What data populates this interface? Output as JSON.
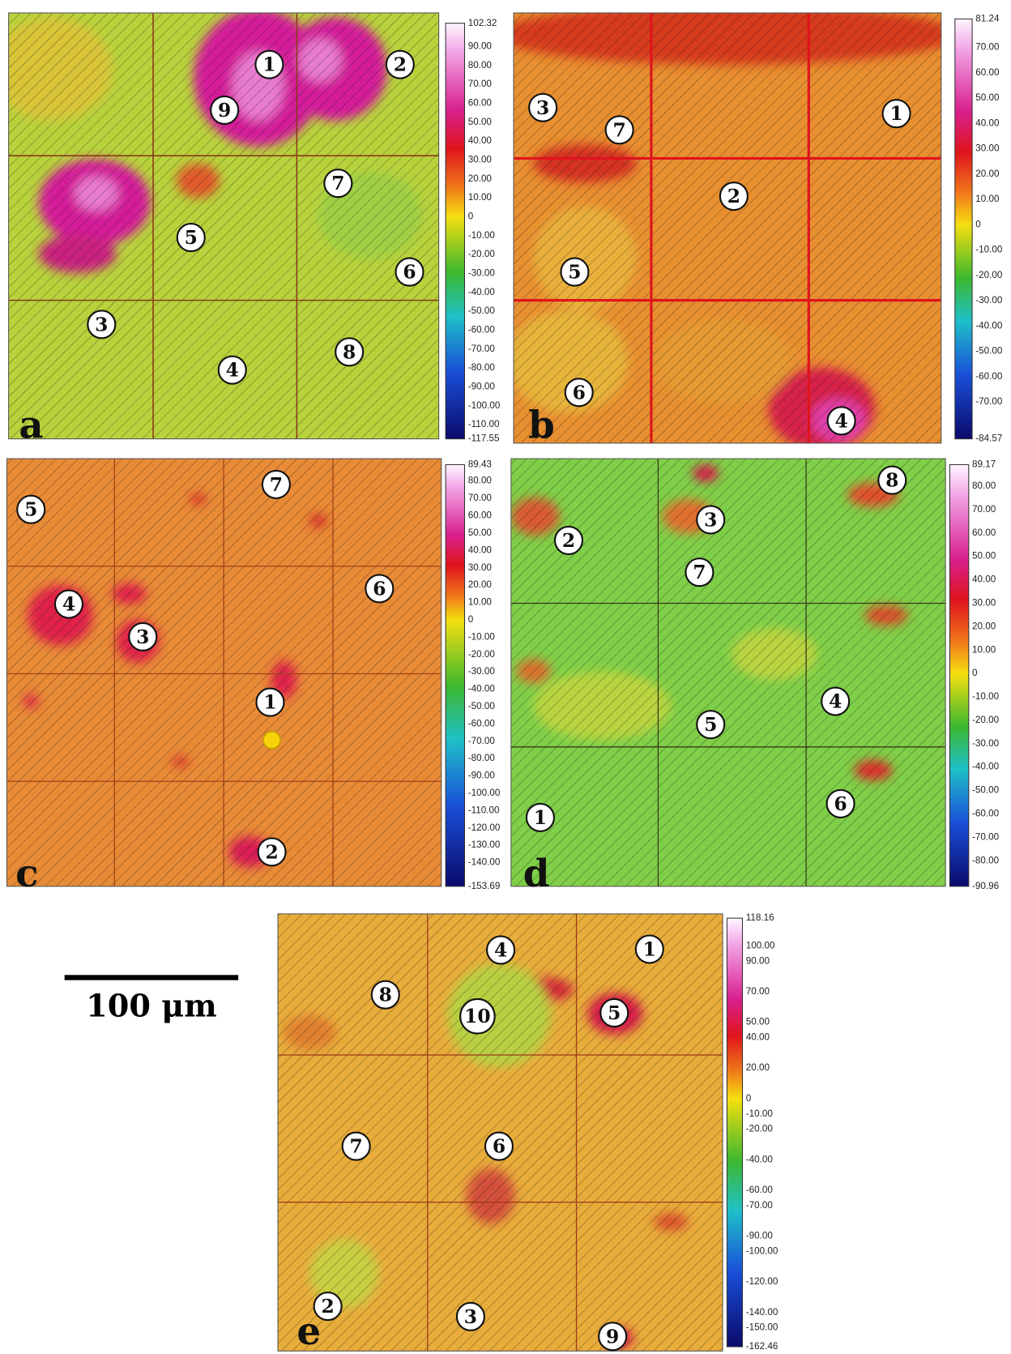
{
  "panels": [
    {
      "label": "a",
      "colorbar": [
        "102.32",
        "90.00",
        "80.00",
        "70.00",
        "60.00",
        "50.00",
        "40.00",
        "30.00",
        "20.00",
        "10.00",
        "0",
        "-10.00",
        "-20.00",
        "-30.00",
        "-40.00",
        "-50.00",
        "-60.00",
        "-70.00",
        "-80.00",
        "-90.00",
        "-100.00",
        "-110.00",
        "-117.55"
      ],
      "markers": [
        "1",
        "2",
        "9",
        "7",
        "5",
        "6",
        "3",
        "8",
        "4"
      ]
    },
    {
      "label": "b",
      "colorbar": [
        "81.24",
        "70.00",
        "60.00",
        "50.00",
        "40.00",
        "30.00",
        "20.00",
        "10.00",
        "0",
        "-10.00",
        "-20.00",
        "-30.00",
        "-40.00",
        "-50.00",
        "-60.00",
        "-70.00",
        "-84.57"
      ],
      "markers": [
        "3",
        "7",
        "1",
        "2",
        "5",
        "6",
        "4"
      ]
    },
    {
      "label": "c",
      "colorbar": [
        "89.43",
        "80.00",
        "70.00",
        "60.00",
        "50.00",
        "40.00",
        "30.00",
        "20.00",
        "10.00",
        "0",
        "-10.00",
        "-20.00",
        "-30.00",
        "-40.00",
        "-50.00",
        "-60.00",
        "-70.00",
        "-80.00",
        "-90.00",
        "-100.00",
        "-110.00",
        "-120.00",
        "-130.00",
        "-140.00",
        "-153.69"
      ],
      "markers": [
        "5",
        "7",
        "6",
        "4",
        "3",
        "1",
        "2"
      ]
    },
    {
      "label": "d",
      "colorbar": [
        "89.17",
        "80.00",
        "70.00",
        "60.00",
        "50.00",
        "40.00",
        "30.00",
        "20.00",
        "10.00",
        "0",
        "-10.00",
        "-20.00",
        "-30.00",
        "-40.00",
        "-50.00",
        "-60.00",
        "-70.00",
        "-80.00",
        "-90.96"
      ],
      "markers": [
        "8",
        "3",
        "2",
        "7",
        "4",
        "5",
        "6",
        "1"
      ]
    },
    {
      "label": "e",
      "colorbar": [
        "118.16",
        "100.00",
        "90.00",
        "70.00",
        "50.00",
        "40.00",
        "20.00",
        "0",
        "-10.00",
        "-20.00",
        "-40.00",
        "-60.00",
        "-70.00",
        "-90.00",
        "-100.00",
        "-120.00",
        "-140.00",
        "-150.00",
        "-162.46"
      ],
      "markers": [
        "4",
        "1",
        "8",
        "10",
        "5",
        "7",
        "6",
        "2",
        "3",
        "9"
      ]
    }
  ],
  "scale_bar": {
    "label": "100 μm"
  }
}
